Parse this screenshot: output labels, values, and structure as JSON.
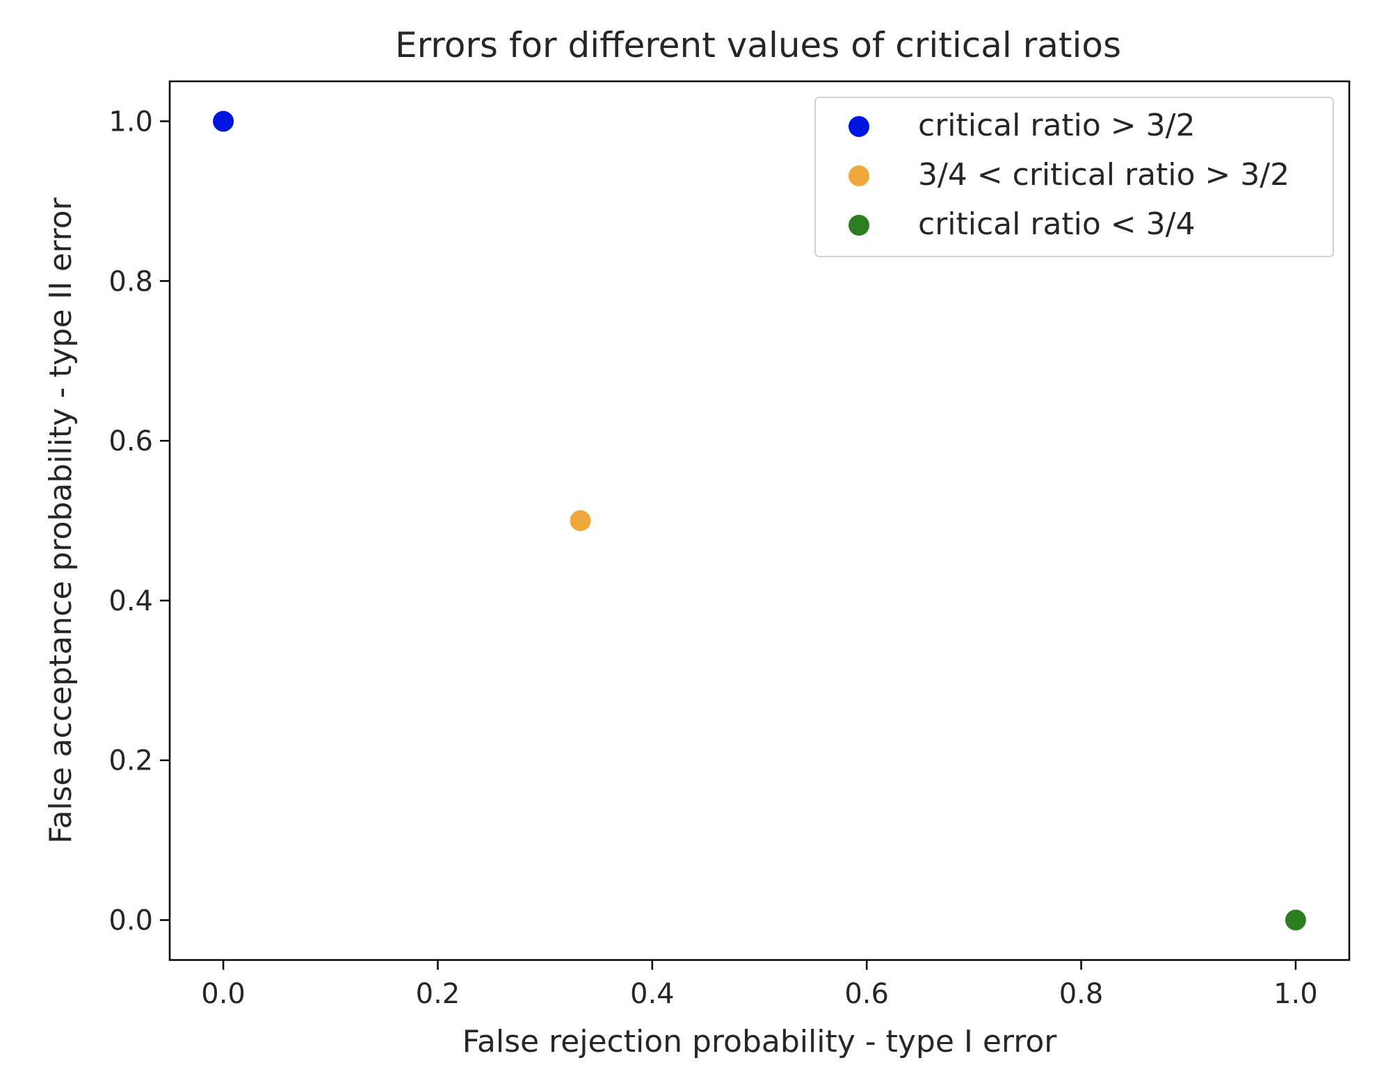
{
  "chart_data": {
    "type": "scatter",
    "title": "Errors for different values of critical ratios",
    "xlabel": "False rejection probability - type I error",
    "ylabel": "False acceptance probability - type II error",
    "xlim": [
      -0.05,
      1.05
    ],
    "ylim": [
      -0.05,
      1.05
    ],
    "x_ticks": [
      0.0,
      0.2,
      0.4,
      0.6,
      0.8,
      1.0
    ],
    "x_tick_labels": [
      "0.0",
      "0.2",
      "0.4",
      "0.6",
      "0.8",
      "1.0"
    ],
    "y_ticks": [
      0.0,
      0.2,
      0.4,
      0.6,
      0.8,
      1.0
    ],
    "y_tick_labels": [
      "0.0",
      "0.2",
      "0.4",
      "0.6",
      "0.8",
      "1.0"
    ],
    "grid": false,
    "legend_position": "top-right",
    "series": [
      {
        "name": "critical ratio > 3/2",
        "color": "#0015e0",
        "points": [
          {
            "x": 0.0,
            "y": 1.0
          }
        ]
      },
      {
        "name": "3/4 < critical ratio > 3/2",
        "color": "#efa83b",
        "points": [
          {
            "x": 0.333,
            "y": 0.5
          }
        ]
      },
      {
        "name": "critical ratio < 3/4",
        "color": "#2e7d23",
        "points": [
          {
            "x": 1.0,
            "y": 0.0
          }
        ]
      }
    ]
  }
}
